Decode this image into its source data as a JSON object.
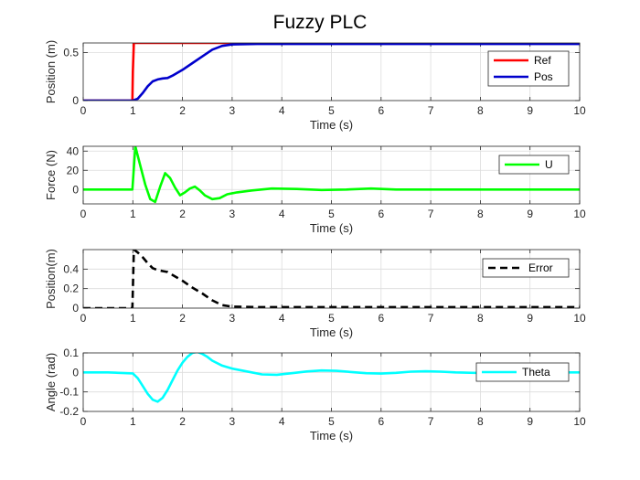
{
  "figure": {
    "title": "Fuzzy PLC"
  },
  "chart_data": [
    {
      "type": "line",
      "xlabel": "Time (s)",
      "ylabel": "Position (m)",
      "xlim": [
        0,
        10
      ],
      "ylim": [
        0,
        0.6
      ],
      "xticks": [
        "0",
        "1",
        "2",
        "3",
        "4",
        "5",
        "6",
        "7",
        "8",
        "9",
        "10"
      ],
      "yticks": [
        "0",
        "0.5"
      ],
      "grid": true,
      "legend_position": "bottom-right",
      "series": [
        {
          "name": "Ref",
          "color": "#ff0000",
          "dash": "solid",
          "x": [
            0,
            0.99,
            1.0,
            1.02,
            10
          ],
          "y": [
            0,
            0,
            0.3,
            0.6,
            0.6
          ]
        },
        {
          "name": "Pos",
          "color": "#0000cc",
          "dash": "solid",
          "x": [
            0,
            1.0,
            1.1,
            1.2,
            1.3,
            1.4,
            1.5,
            1.6,
            1.7,
            1.8,
            2.0,
            2.2,
            2.4,
            2.6,
            2.8,
            3.0,
            3.5,
            4.0,
            5.0,
            6.0,
            7.0,
            8.0,
            9.0,
            10.0
          ],
          "y": [
            0,
            0,
            0.02,
            0.08,
            0.15,
            0.2,
            0.22,
            0.23,
            0.235,
            0.26,
            0.32,
            0.39,
            0.46,
            0.53,
            0.57,
            0.585,
            0.59,
            0.59,
            0.59,
            0.59,
            0.59,
            0.59,
            0.59,
            0.59
          ]
        }
      ]
    },
    {
      "type": "line",
      "xlabel": "Time (s)",
      "ylabel": "Force (N)",
      "xlim": [
        0,
        10
      ],
      "ylim": [
        -15,
        45
      ],
      "xticks": [
        "0",
        "1",
        "2",
        "3",
        "4",
        "5",
        "6",
        "7",
        "8",
        "9",
        "10"
      ],
      "yticks": [
        "0",
        "20",
        "40"
      ],
      "grid": true,
      "legend_position": "top-right",
      "series": [
        {
          "name": "U",
          "color": "#00ff00",
          "dash": "solid",
          "x": [
            0,
            0.99,
            1.05,
            1.15,
            1.25,
            1.35,
            1.45,
            1.55,
            1.65,
            1.75,
            1.85,
            1.95,
            2.05,
            2.15,
            2.25,
            2.35,
            2.45,
            2.6,
            2.75,
            2.9,
            3.1,
            3.4,
            3.8,
            4.3,
            4.8,
            5.3,
            5.8,
            6.3,
            7.0,
            8.0,
            9.0,
            10.0
          ],
          "y": [
            0,
            0,
            45,
            25,
            5,
            -10,
            -13,
            3,
            17,
            12,
            2,
            -6,
            -3,
            1,
            3,
            -1,
            -6,
            -10,
            -9,
            -5,
            -3,
            -1,
            1,
            0.5,
            -0.5,
            0,
            1,
            0,
            0,
            0,
            0,
            0
          ]
        }
      ]
    },
    {
      "type": "line",
      "xlabel": "Time (s)",
      "ylabel": "Position(m)",
      "xlim": [
        0,
        10
      ],
      "ylim": [
        0,
        0.6
      ],
      "xticks": [
        "0",
        "1",
        "2",
        "3",
        "4",
        "5",
        "6",
        "7",
        "8",
        "9",
        "10"
      ],
      "yticks": [
        "0",
        "0.2",
        "0.4"
      ],
      "grid": true,
      "legend_position": "top-right",
      "series": [
        {
          "name": "Error",
          "color": "#000000",
          "dash": "dashed",
          "x": [
            0,
            0.99,
            1.02,
            1.1,
            1.2,
            1.3,
            1.4,
            1.5,
            1.6,
            1.7,
            1.8,
            2.0,
            2.2,
            2.4,
            2.6,
            2.8,
            3.0,
            3.5,
            4.0,
            5.0,
            6.0,
            7.0,
            8.0,
            9.0,
            10.0
          ],
          "y": [
            0,
            0,
            0.6,
            0.57,
            0.52,
            0.46,
            0.41,
            0.39,
            0.38,
            0.37,
            0.34,
            0.28,
            0.21,
            0.15,
            0.08,
            0.03,
            0.015,
            0.01,
            0.01,
            0.01,
            0.01,
            0.01,
            0.01,
            0.01,
            0.01
          ]
        }
      ]
    },
    {
      "type": "line",
      "xlabel": "Time (s)",
      "ylabel": "Angle (rad)",
      "xlim": [
        0,
        10
      ],
      "ylim": [
        -0.2,
        0.1
      ],
      "xticks": [
        "0",
        "1",
        "2",
        "3",
        "4",
        "5",
        "6",
        "7",
        "8",
        "9",
        "10"
      ],
      "yticks": [
        "0.1",
        "0",
        "-0.1",
        "-0.2"
      ],
      "grid": true,
      "legend_position": "top-right",
      "series": [
        {
          "name": "Theta",
          "color": "#00ffff",
          "dash": "solid",
          "x": [
            0,
            0.5,
            1.0,
            1.1,
            1.2,
            1.3,
            1.4,
            1.5,
            1.6,
            1.7,
            1.8,
            1.9,
            2.0,
            2.1,
            2.2,
            2.3,
            2.4,
            2.5,
            2.6,
            2.8,
            3.0,
            3.3,
            3.6,
            3.9,
            4.2,
            4.5,
            4.8,
            5.1,
            5.4,
            5.7,
            6.0,
            6.3,
            6.6,
            6.9,
            7.2,
            7.5,
            8.0,
            8.5,
            9.0,
            9.5,
            10.0
          ],
          "y": [
            0,
            0,
            -0.005,
            -0.03,
            -0.07,
            -0.11,
            -0.14,
            -0.15,
            -0.13,
            -0.09,
            -0.04,
            0.01,
            0.05,
            0.08,
            0.1,
            0.105,
            0.095,
            0.08,
            0.06,
            0.035,
            0.02,
            0.005,
            -0.01,
            -0.012,
            -0.004,
            0.005,
            0.01,
            0.008,
            0.002,
            -0.004,
            -0.006,
            -0.002,
            0.004,
            0.006,
            0.004,
            0.0,
            -0.003,
            0.0,
            0.002,
            0.0,
            0.0
          ]
        }
      ]
    }
  ]
}
